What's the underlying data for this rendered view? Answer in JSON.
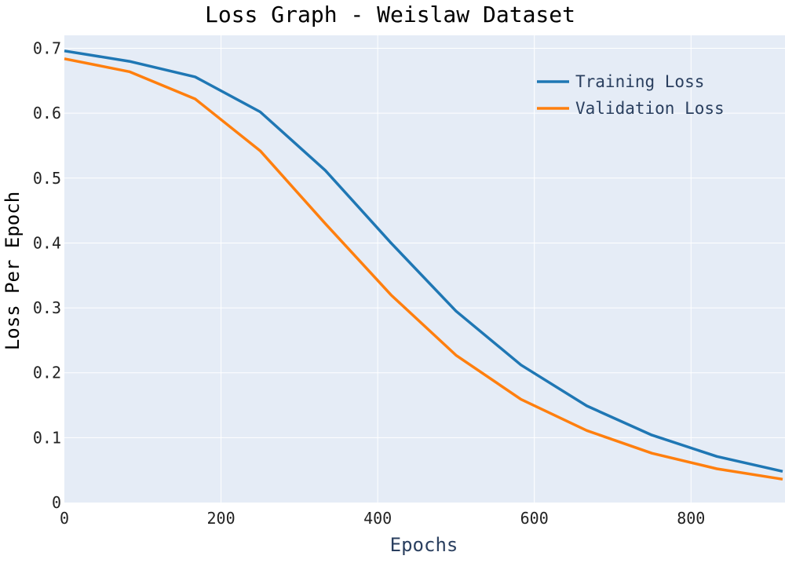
{
  "chart_data": {
    "type": "line",
    "title": "Loss Graph - Weislaw Dataset",
    "xlabel": "Epochs",
    "ylabel": "Loss Per Epoch",
    "xlim": [
      0,
      920
    ],
    "ylim": [
      0,
      0.72
    ],
    "x_ticks": [
      0,
      200,
      400,
      600,
      800
    ],
    "x_tick_labels": [
      "0",
      "200",
      "400",
      "600",
      "800"
    ],
    "y_ticks": [
      0,
      0.1,
      0.2,
      0.3,
      0.4,
      0.5,
      0.6,
      0.7
    ],
    "y_tick_labels": [
      "0",
      "0.1",
      "0.2",
      "0.3",
      "0.4",
      "0.5",
      "0.6",
      "0.7"
    ],
    "grid": true,
    "legend_position": "top-right",
    "x": [
      0,
      83,
      167,
      250,
      333,
      417,
      500,
      583,
      667,
      750,
      833,
      917
    ],
    "series": [
      {
        "name": "Training Loss",
        "color": "#1f77b4",
        "values": [
          0.696,
          0.68,
          0.656,
          0.602,
          0.512,
          0.4,
          0.295,
          0.212,
          0.149,
          0.104,
          0.071,
          0.048
        ]
      },
      {
        "name": "Validation Loss",
        "color": "#ff7f0e",
        "values": [
          0.684,
          0.664,
          0.622,
          0.542,
          0.43,
          0.32,
          0.227,
          0.159,
          0.111,
          0.076,
          0.052,
          0.036
        ]
      }
    ],
    "colors": {
      "plot_background": "#e5ecf6",
      "grid": "#ffffff",
      "text": "#2a3f5f"
    }
  }
}
